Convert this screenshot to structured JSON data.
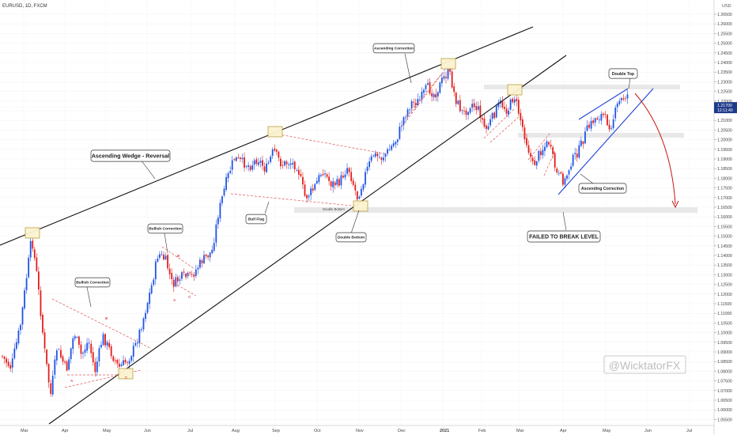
{
  "header": {
    "symbol": "EURUSD, 1D, FXCM"
  },
  "price_axis": {
    "currency": "USD",
    "last_price": "1.21700",
    "countdown": "12:11:40",
    "ticks": [
      "1.26500",
      "1.26000",
      "1.25500",
      "1.25000",
      "1.24500",
      "1.24000",
      "1.23500",
      "1.23000",
      "1.22500",
      "1.22000",
      "1.21500",
      "1.21000",
      "1.20500",
      "1.20000",
      "1.19500",
      "1.19000",
      "1.18500",
      "1.18000",
      "1.17500",
      "1.17000",
      "1.16500",
      "1.16000",
      "1.15500",
      "1.15000",
      "1.14500",
      "1.14000",
      "1.13500",
      "1.13000",
      "1.12500",
      "1.12000",
      "1.11500",
      "1.11000",
      "1.10500",
      "1.10000",
      "1.09500",
      "1.09000",
      "1.08500",
      "1.08000",
      "1.07500",
      "1.07000",
      "1.06500",
      "1.06000",
      "1.05500"
    ]
  },
  "time_axis": {
    "ticks": [
      "Mar",
      "Apr",
      "May",
      "Jun",
      "Jul",
      "Aug",
      "Sep",
      "Oct",
      "Nov",
      "Dec",
      "2021",
      "Feb",
      "Mar",
      "Apr",
      "May",
      "Jun",
      "Jul"
    ]
  },
  "annotations": {
    "wedge": "Ascending Wedge - Reversal",
    "bullish1": "Bullish Correction",
    "bullish2": "Bullish Correction",
    "bull_flag": "Bull Flag",
    "double_bottom_small": "Double Bottom",
    "double_bottom": "Double Bottom",
    "asc_correction_top": "Ascending Correction",
    "double_top": "Double Top",
    "asc_correction_right": "Ascending Correction",
    "failed": "FAILED TO BREAK LEVEL",
    "watermark": "@WicktatorFX",
    "wave_a1": "A",
    "wave_b1": "B",
    "wave_c1": "C",
    "wave_a2": "A",
    "wave_b2": "B",
    "wave_c2": "C"
  },
  "colors": {
    "bull": "#1e53e5",
    "bear": "#e11d1d",
    "wedge": "#111111",
    "channel": "#1c3fd6",
    "dashed": "#e05252",
    "arrow": "#c81414"
  },
  "chart_data": {
    "type": "candlestick",
    "symbol": "EURUSD",
    "timeframe": "1D",
    "ylim": [
      1.0525,
      1.2675
    ],
    "approx_close_path": [
      {
        "x": "Feb 2020",
        "y": 1.085
      },
      {
        "x": "Mar 2020",
        "y": 1.145
      },
      {
        "x": "Mar 2020",
        "y": 1.07
      },
      {
        "x": "Apr 2020",
        "y": 1.095
      },
      {
        "x": "May 2020",
        "y": 1.08
      },
      {
        "x": "Jun 2020",
        "y": 1.138
      },
      {
        "x": "Jul 2020",
        "y": 1.125
      },
      {
        "x": "Aug 2020",
        "y": 1.188
      },
      {
        "x": "Sep 2020",
        "y": 1.2
      },
      {
        "x": "Oct 2020",
        "y": 1.17
      },
      {
        "x": "Nov 2020",
        "y": 1.165
      },
      {
        "x": "Dec 2020",
        "y": 1.215
      },
      {
        "x": "Jan 2021",
        "y": 1.23
      },
      {
        "x": "Feb 2021",
        "y": 1.205
      },
      {
        "x": "Mar 2021",
        "y": 1.22
      },
      {
        "x": "Apr 2021",
        "y": 1.172
      },
      {
        "x": "May 2021",
        "y": 1.21
      },
      {
        "x": "May 2021",
        "y": 1.227
      }
    ],
    "last_price": 1.217,
    "levels": [
      {
        "name": "Double Top zone",
        "y": 1.2245
      },
      {
        "name": "Support zone",
        "y": 1.199
      },
      {
        "name": "Double Bottom zone",
        "y": 1.162
      }
    ]
  }
}
